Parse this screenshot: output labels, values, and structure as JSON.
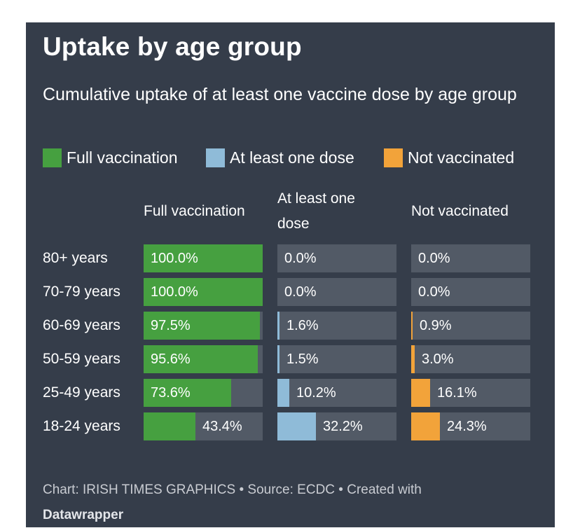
{
  "chart_data": {
    "type": "table",
    "title": "Uptake by age group",
    "subtitle": "Cumulative uptake of at least one vaccine dose by age group",
    "legend": [
      {
        "name": "Full vaccination",
        "color": "#46a040"
      },
      {
        "name": "At least one dose",
        "color": "#8fbbd8"
      },
      {
        "name": "Not vaccinated",
        "color": "#f2a33a"
      }
    ],
    "columns": [
      "Full vaccination",
      "At least one dose",
      "Not vaccinated"
    ],
    "categories": [
      "80+ years",
      "70-79 years",
      "60-69 years",
      "50-59 years",
      "25-49 years",
      "18-24 years"
    ],
    "series": [
      {
        "name": "Full vaccination",
        "values": [
          100.0,
          100.0,
          97.5,
          95.6,
          73.6,
          43.4
        ],
        "labels": [
          "100.0%",
          "100.0%",
          "97.5%",
          "95.6%",
          "73.6%",
          "43.4%"
        ]
      },
      {
        "name": "At least one dose",
        "values": [
          0.0,
          0.0,
          1.6,
          1.5,
          10.2,
          32.2
        ],
        "labels": [
          "0.0%",
          "0.0%",
          "1.6%",
          "1.5%",
          "10.2%",
          "32.2%"
        ]
      },
      {
        "name": "Not vaccinated",
        "values": [
          0.0,
          0.0,
          0.9,
          3.0,
          16.1,
          24.3
        ],
        "labels": [
          "0.0%",
          "0.0%",
          "0.9%",
          "3.0%",
          "16.1%",
          "24.3%"
        ]
      }
    ],
    "max_value": 100
  },
  "footer": {
    "text": "Chart: IRISH TIMES GRAPHICS • Source: ECDC • Created with",
    "brand": "Datawrapper"
  }
}
